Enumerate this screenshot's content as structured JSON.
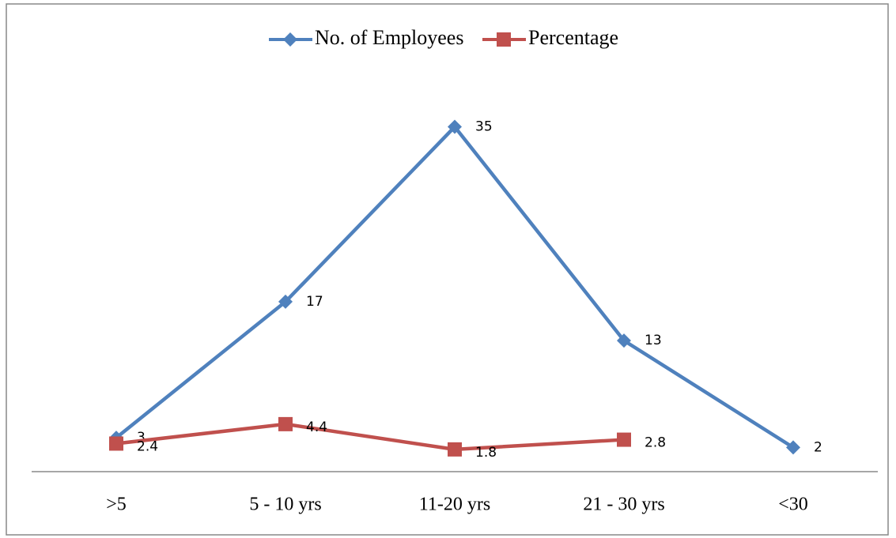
{
  "chart_data": {
    "type": "line",
    "categories": [
      ">5",
      "5 - 10 yrs",
      "11-20 yrs",
      "21 - 30 yrs",
      "<30"
    ],
    "series": [
      {
        "name": "No. of Employees",
        "color": "#4f81bd",
        "marker": "diamond",
        "values": [
          3,
          17,
          35,
          13,
          2
        ]
      },
      {
        "name": "Percentage",
        "color": "#c0504d",
        "marker": "square",
        "values": [
          2.4,
          4.4,
          1.8,
          2.8,
          null
        ]
      }
    ],
    "ylim": [
      0,
      40
    ],
    "legend": "top",
    "data_labels": true
  }
}
